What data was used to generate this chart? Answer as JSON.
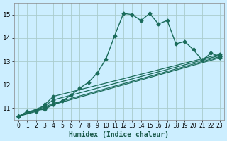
{
  "xlabel": "Humidex (Indice chaleur)",
  "background_color": "#cceeff",
  "grid_color": "#aacccc",
  "line_color": "#1a6b5a",
  "xlim": [
    -0.5,
    23.5
  ],
  "ylim": [
    10.5,
    15.5
  ],
  "xticks": [
    0,
    1,
    2,
    3,
    4,
    5,
    6,
    7,
    8,
    9,
    10,
    11,
    12,
    13,
    14,
    15,
    16,
    17,
    18,
    19,
    20,
    21,
    22,
    23
  ],
  "yticks": [
    11,
    12,
    13,
    14,
    15
  ],
  "lines": [
    {
      "x": [
        0,
        1,
        2,
        3,
        4,
        5,
        6,
        7,
        8,
        9,
        10,
        11,
        12,
        13,
        14,
        15,
        16,
        17,
        18,
        19,
        20,
        21,
        22,
        23
      ],
      "y": [
        10.65,
        10.85,
        10.9,
        10.95,
        11.15,
        11.3,
        11.55,
        11.85,
        12.1,
        12.5,
        13.1,
        14.1,
        15.05,
        15.0,
        14.75,
        15.05,
        14.6,
        14.75,
        13.75,
        13.85,
        13.5,
        13.05,
        13.35,
        13.2
      ],
      "marker": "D",
      "markersize": 2.5,
      "linewidth": 1.0
    },
    {
      "x": [
        0,
        3,
        4,
        23
      ],
      "y": [
        10.65,
        11.0,
        11.15,
        13.15
      ],
      "marker": "D",
      "markersize": 2.5,
      "linewidth": 0.9
    },
    {
      "x": [
        0,
        3,
        4,
        23
      ],
      "y": [
        10.65,
        11.05,
        11.2,
        13.2
      ],
      "marker": "D",
      "markersize": 2.5,
      "linewidth": 0.9
    },
    {
      "x": [
        0,
        3,
        4,
        23
      ],
      "y": [
        10.65,
        11.1,
        11.35,
        13.25
      ],
      "marker": "D",
      "markersize": 2.5,
      "linewidth": 0.9
    },
    {
      "x": [
        0,
        2,
        3,
        4,
        23
      ],
      "y": [
        10.65,
        10.85,
        11.15,
        11.5,
        13.3
      ],
      "marker": "D",
      "markersize": 2.5,
      "linewidth": 0.9
    }
  ]
}
